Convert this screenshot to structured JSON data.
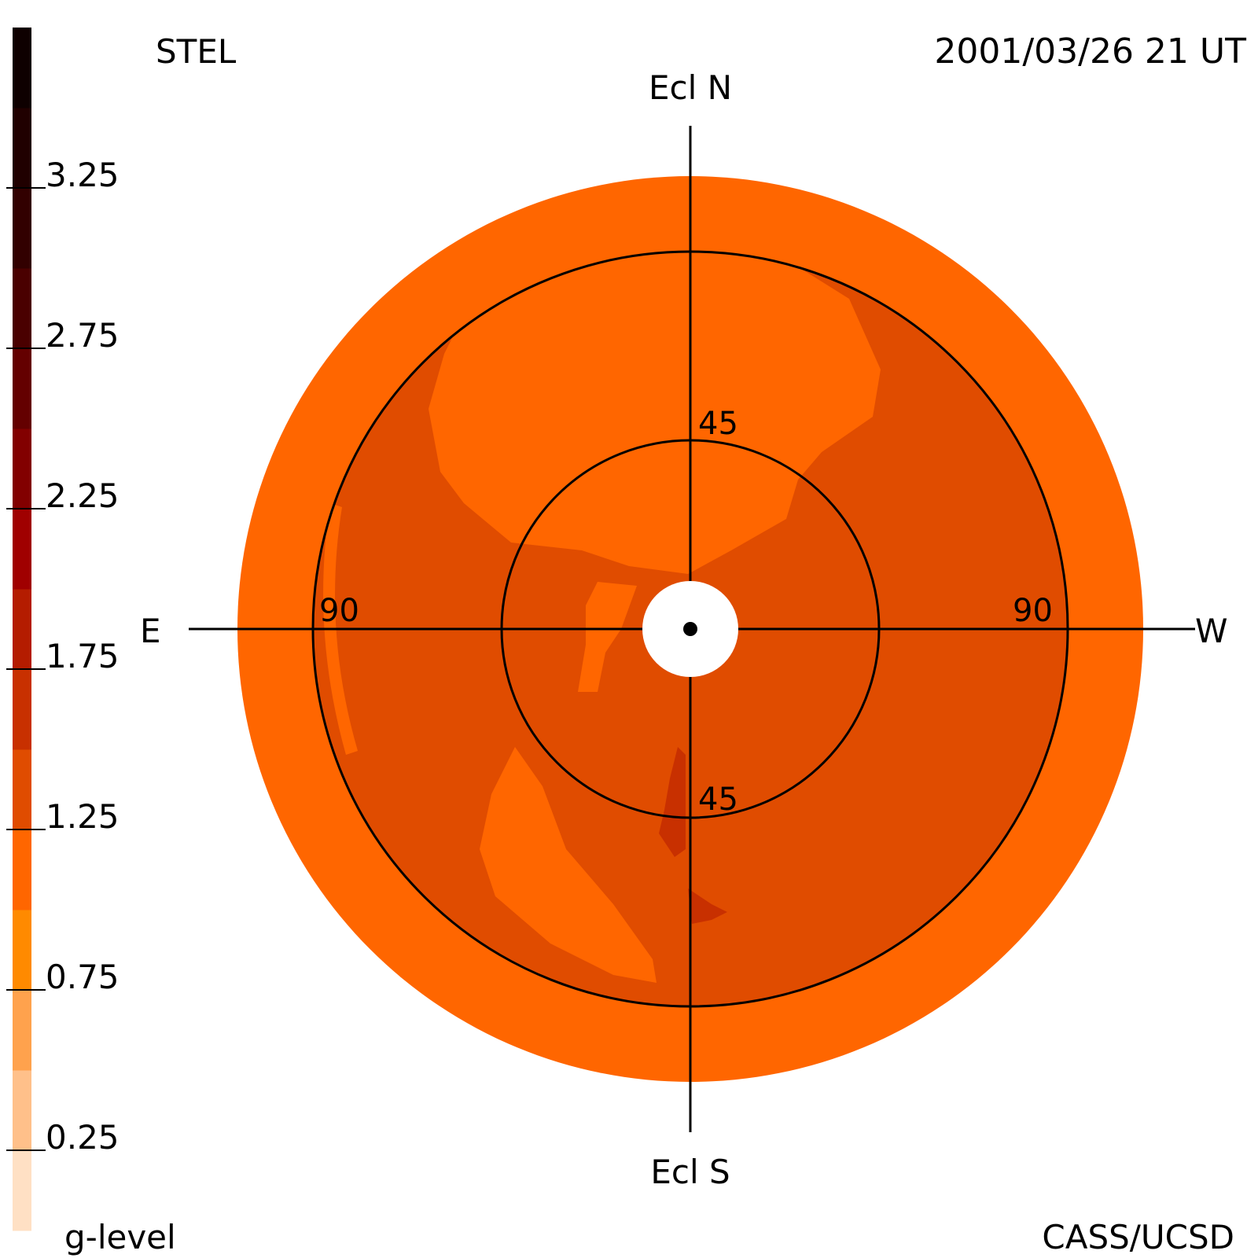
{
  "header": {
    "station": "STEL",
    "datetime": "2001/03/26 21 UT",
    "credit": "CASS/UCSD"
  },
  "directions": {
    "north": "Ecl N",
    "south": "Ecl S",
    "east": "E",
    "west": "W"
  },
  "rings": [
    {
      "label": "45",
      "elongation": 45
    },
    {
      "label": "45",
      "elongation": 45
    },
    {
      "label": "90",
      "elongation": 90
    },
    {
      "label": "90",
      "elongation": 90
    }
  ],
  "colorbar": {
    "title": "g-level",
    "tick_labels": [
      "0.25",
      "0.75",
      "1.25",
      "1.75",
      "2.25",
      "2.75",
      "3.25"
    ],
    "tick_values": [
      0.25,
      0.75,
      1.25,
      1.75,
      2.25,
      2.75,
      3.25
    ],
    "range": [
      0,
      3.75
    ],
    "levels": [
      {
        "from": 0.0,
        "to": 0.25,
        "color": "#ffe0c4"
      },
      {
        "from": 0.25,
        "to": 0.5,
        "color": "#ffc08a"
      },
      {
        "from": 0.5,
        "to": 0.75,
        "color": "#ffa24d"
      },
      {
        "from": 0.75,
        "to": 1.0,
        "color": "#ff8a00"
      },
      {
        "from": 1.0,
        "to": 1.25,
        "color": "#ff6600"
      },
      {
        "from": 1.25,
        "to": 1.5,
        "color": "#e04c00"
      },
      {
        "from": 1.5,
        "to": 1.75,
        "color": "#c83000"
      },
      {
        "from": 1.75,
        "to": 2.0,
        "color": "#b41c00"
      },
      {
        "from": 2.0,
        "to": 2.25,
        "color": "#a00000"
      },
      {
        "from": 2.25,
        "to": 2.5,
        "color": "#820000"
      },
      {
        "from": 2.5,
        "to": 2.75,
        "color": "#640000"
      },
      {
        "from": 2.75,
        "to": 3.0,
        "color": "#4a0000"
      },
      {
        "from": 3.0,
        "to": 3.25,
        "color": "#320000"
      },
      {
        "from": 3.25,
        "to": 3.5,
        "color": "#200000"
      },
      {
        "from": 3.5,
        "to": 3.75,
        "color": "#0e0000"
      }
    ]
  },
  "chart_data": {
    "type": "heatmap",
    "title": "",
    "projection": "fisheye sky map centered on the Sun, radius = elongation",
    "max_elongation": 108,
    "occulted_elongation": 11,
    "background_level": 1.1,
    "dominant_level": 1.35,
    "regions": [
      {
        "level": 1.1,
        "note": "outer ring",
        "el_min": 90,
        "el_max": 108
      },
      {
        "level": 1.35,
        "note": "annulus inside 90",
        "el_min": 11,
        "el_max": 90
      },
      {
        "level": 1.1,
        "note": "northern lobe",
        "pa_center": 10,
        "el_center": 55
      },
      {
        "level": 1.1,
        "note": "south-east lobe",
        "pa_center": 150,
        "el_center": 70
      },
      {
        "level": 1.6,
        "note": "small southern enhancement",
        "pa_center": 180,
        "el_center": 58
      }
    ],
    "colors": {
      "low": "#ff6600",
      "mid": "#e04c00",
      "high": "#c83000",
      "occulter": "#ffffff"
    }
  }
}
